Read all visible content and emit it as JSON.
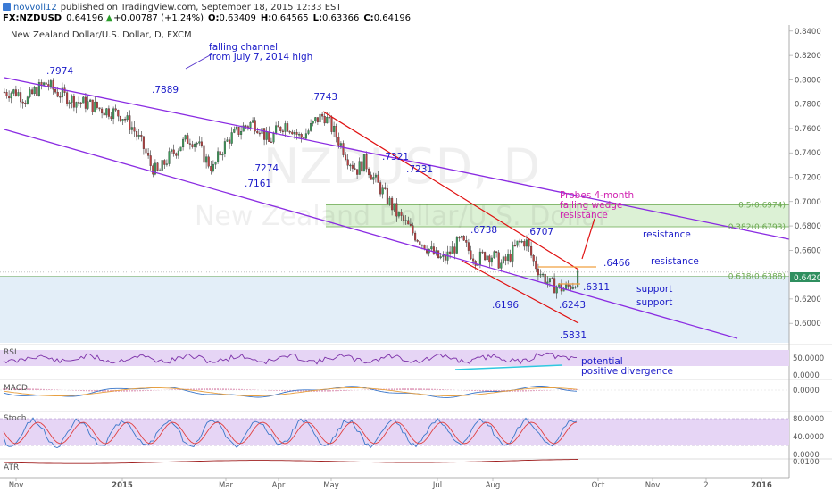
{
  "header": {
    "author": "novvoll12",
    "published": "published on TradingView.com, September 18, 2015 12:33 EST",
    "symbol": "FX:NZDUSD",
    "last": "0.64196",
    "change": "+0.00787 (+1.24%)",
    "o_label": "O:",
    "o_value": "0.63409",
    "h_label": "H:",
    "h_value": "0.64565",
    "l_label": "L:",
    "l_value": "0.63366",
    "c_label": "C:",
    "c_value": "0.64196",
    "up_color": "#2a9d2a"
  },
  "title": "New Zealand Dollar/U.S. Dollar, D, FXCM",
  "watermark": {
    "line1": "NZDUSD, D",
    "line2": "New Zealand Dollar/U.S. Dollar"
  },
  "price_tag": "0.6420",
  "chart_data": {
    "type": "candlestick",
    "y_ticks": [
      "0.8400",
      "0.8200",
      "0.8000",
      "0.7800",
      "0.7600",
      "0.7400",
      "0.7200",
      "0.7000",
      "0.6800",
      "0.6600",
      "0.6200",
      "0.6000"
    ],
    "y_tick_values": [
      0.84,
      0.82,
      0.8,
      0.78,
      0.76,
      0.74,
      0.72,
      0.7,
      0.68,
      0.66,
      0.62,
      0.6
    ],
    "ylim": [
      0.584,
      0.845
    ],
    "x_ticks": [
      {
        "label": "Nov",
        "x": 0
      },
      {
        "label": "2015",
        "x": 2
      },
      {
        "label": "Mar",
        "x": 4
      },
      {
        "label": "Apr",
        "x": 5
      },
      {
        "label": "May",
        "x": 6
      },
      {
        "label": "Jul",
        "x": 8
      },
      {
        "label": "Aug",
        "x": 9
      },
      {
        "label": "Oct",
        "x": 11
      },
      {
        "label": "Nov",
        "x": 12
      },
      {
        "label": "2",
        "x": 13
      },
      {
        "label": "2016",
        "x": 14
      }
    ],
    "close_path": [
      [
        0,
        0.79
      ],
      [
        0.2,
        0.783
      ],
      [
        0.4,
        0.792
      ],
      [
        0.6,
        0.797
      ],
      [
        0.8,
        0.79
      ],
      [
        1.0,
        0.786
      ],
      [
        1.2,
        0.782
      ],
      [
        1.4,
        0.78
      ],
      [
        1.6,
        0.776
      ],
      [
        1.8,
        0.774
      ],
      [
        2.0,
        0.77
      ],
      [
        2.2,
        0.76
      ],
      [
        2.4,
        0.745
      ],
      [
        2.55,
        0.73
      ],
      [
        2.7,
        0.723
      ],
      [
        2.85,
        0.733
      ],
      [
        3.0,
        0.74
      ],
      [
        3.15,
        0.747
      ],
      [
        3.3,
        0.752
      ],
      [
        3.45,
        0.748
      ],
      [
        3.6,
        0.735
      ],
      [
        3.75,
        0.727
      ],
      [
        3.9,
        0.742
      ],
      [
        4.05,
        0.752
      ],
      [
        4.2,
        0.757
      ],
      [
        4.35,
        0.762
      ],
      [
        4.5,
        0.765
      ],
      [
        4.65,
        0.76
      ],
      [
        4.8,
        0.748
      ],
      [
        4.95,
        0.758
      ],
      [
        5.1,
        0.764
      ],
      [
        5.25,
        0.76
      ],
      [
        5.4,
        0.752
      ],
      [
        5.55,
        0.758
      ],
      [
        5.7,
        0.767
      ],
      [
        5.85,
        0.771
      ],
      [
        6.0,
        0.76
      ],
      [
        6.15,
        0.748
      ],
      [
        6.3,
        0.735
      ],
      [
        6.45,
        0.726
      ],
      [
        6.6,
        0.733
      ],
      [
        6.75,
        0.72
      ],
      [
        6.9,
        0.71
      ],
      [
        7.05,
        0.7
      ],
      [
        7.2,
        0.69
      ],
      [
        7.35,
        0.683
      ],
      [
        7.5,
        0.675
      ],
      [
        7.65,
        0.668
      ],
      [
        7.8,
        0.662
      ],
      [
        7.95,
        0.655
      ],
      [
        8.1,
        0.652
      ],
      [
        8.25,
        0.66
      ],
      [
        8.4,
        0.668
      ],
      [
        8.55,
        0.66
      ],
      [
        8.7,
        0.652
      ],
      [
        8.85,
        0.657
      ],
      [
        9.0,
        0.655
      ],
      [
        9.15,
        0.648
      ],
      [
        9.3,
        0.655
      ],
      [
        9.45,
        0.665
      ],
      [
        9.6,
        0.668
      ],
      [
        9.75,
        0.65
      ],
      [
        9.9,
        0.64
      ],
      [
        10.05,
        0.632
      ],
      [
        10.2,
        0.63
      ],
      [
        10.35,
        0.628
      ],
      [
        10.5,
        0.633
      ],
      [
        10.6,
        0.638
      ],
      [
        10.7,
        0.642
      ]
    ],
    "rsi_ticks": [
      "50.0000",
      "0.0000"
    ],
    "macd_ticks": [
      "0.0000"
    ],
    "stoch_ticks": [
      "80.0000",
      "40.0000",
      "0.0000"
    ],
    "atr_ticks": [
      "0.0100"
    ],
    "fib_levels": [
      {
        "label": "0.5(0.6974)",
        "value": 0.6974
      },
      {
        "label": "0.382(0.6793)",
        "value": 0.6793
      },
      {
        "label": "0.618(0.6388)",
        "value": 0.6388
      }
    ]
  },
  "annotations": {
    "channel": "falling channel",
    "channel2": "from July 7, 2014 high",
    "p7974": ".7974",
    "p7889": ".7889",
    "p7743": ".7743",
    "p7274": ".7274",
    "p7161": ".7161",
    "p7321": ".7321",
    "p7231": ".7231",
    "p6738": ".6738",
    "p6707": ".6707",
    "p6466": ".6466",
    "p6311": ".6311",
    "p6196": ".6196",
    "p6243": ".6243",
    "p5831": ".5831",
    "probes1": "Probes 4-month",
    "probes2": "falling wedge",
    "probes3": "resistance",
    "resistance1": "resistance",
    "resistance2": "resistance",
    "support1": "support",
    "support2": "support",
    "divergence1": "potential",
    "divergence2": "positive divergence"
  },
  "panes": {
    "rsi": "RSI",
    "macd": "MACD",
    "stoch": "Stoch",
    "atr": "ATR"
  }
}
